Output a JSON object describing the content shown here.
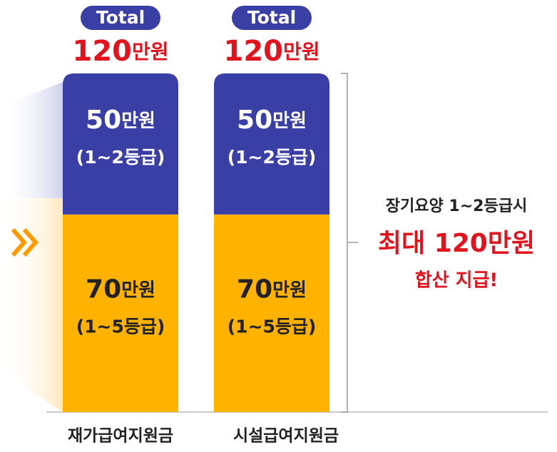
{
  "chart_data": {
    "type": "bar",
    "stacked": true,
    "categories": [
      "재가급여지원금",
      "시설급여지원금"
    ],
    "series": [
      {
        "name": "(1~5등급)",
        "color": "#ffb300",
        "values": [
          70,
          70
        ],
        "value_labels": [
          "70만원",
          "70만원"
        ]
      },
      {
        "name": "(1~2등급)",
        "color": "#3a3fa6",
        "values": [
          50,
          50
        ],
        "value_labels": [
          "50만원",
          "50만원"
        ]
      }
    ],
    "total_title": "Total",
    "totals": [
      120,
      120
    ],
    "total_labels": [
      "120만원",
      "120만원"
    ],
    "annotation": [
      "장기요양 1~2등급시",
      "최대 120만원",
      "합산 지급!"
    ]
  }
}
